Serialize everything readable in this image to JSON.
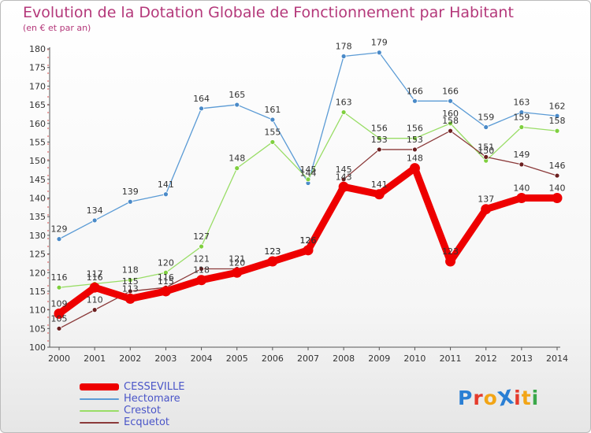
{
  "header": {
    "title": "Evolution de la Dotation Globale de Fonctionnement par Habitant",
    "subtitle": "(en € et par an)"
  },
  "logo": {
    "text": "ProXiti",
    "letters": [
      "P",
      "r",
      "o",
      "X",
      "i",
      "t",
      "i"
    ],
    "colors": [
      "#2a7fd4",
      "#e53b2c",
      "#f2a516",
      "#2a7fd4",
      "#e53b2c",
      "#f2a516",
      "#3aa84a"
    ]
  },
  "chart_data": {
    "type": "line",
    "categories": [
      "2000",
      "2001",
      "2002",
      "2003",
      "2004",
      "2005",
      "2006",
      "2007",
      "2008",
      "2009",
      "2010",
      "2011",
      "2012",
      "2013",
      "2014"
    ],
    "ylim": [
      100,
      180
    ],
    "yticks": [
      "100",
      "105",
      "110",
      "115",
      "120",
      "125",
      "130",
      "135",
      "140",
      "145",
      "150",
      "155",
      "160",
      "165",
      "170",
      "175",
      "180"
    ],
    "grid": false,
    "legend_position": "bottom-left",
    "series": [
      {
        "name": "Hectomare",
        "color": "#5b9bd5",
        "marker_fill": "#4a8ac8",
        "line": "thin",
        "values": [
          129,
          134,
          139,
          141,
          164,
          165,
          161,
          144,
          178,
          179,
          166,
          166,
          159,
          163,
          162
        ]
      },
      {
        "name": "Crestot",
        "color": "#99dd66",
        "marker_fill": "#7fcf3f",
        "line": "thin",
        "values": [
          116,
          117,
          118,
          120,
          127,
          148,
          155,
          145,
          163,
          156,
          156,
          160,
          150,
          159,
          158
        ]
      },
      {
        "name": "Ecquetot",
        "color": "#8b3a3a",
        "marker_fill": "#6b1f1f",
        "line": "thin",
        "values": [
          105,
          110,
          115,
          116,
          121,
          121,
          123,
          126,
          145,
          153,
          153,
          158,
          151,
          149,
          146
        ]
      },
      {
        "name": "CESSEVILLE",
        "color": "#ee0000",
        "marker_fill": "#ee0000",
        "line": "thick",
        "values": [
          109,
          116,
          113,
          115,
          118,
          120,
          123,
          126,
          143,
          141,
          148,
          123,
          137,
          140,
          140
        ]
      }
    ],
    "legend_order": [
      "CESSEVILLE",
      "Hectomare",
      "Crestot",
      "Ecquetot"
    ]
  }
}
